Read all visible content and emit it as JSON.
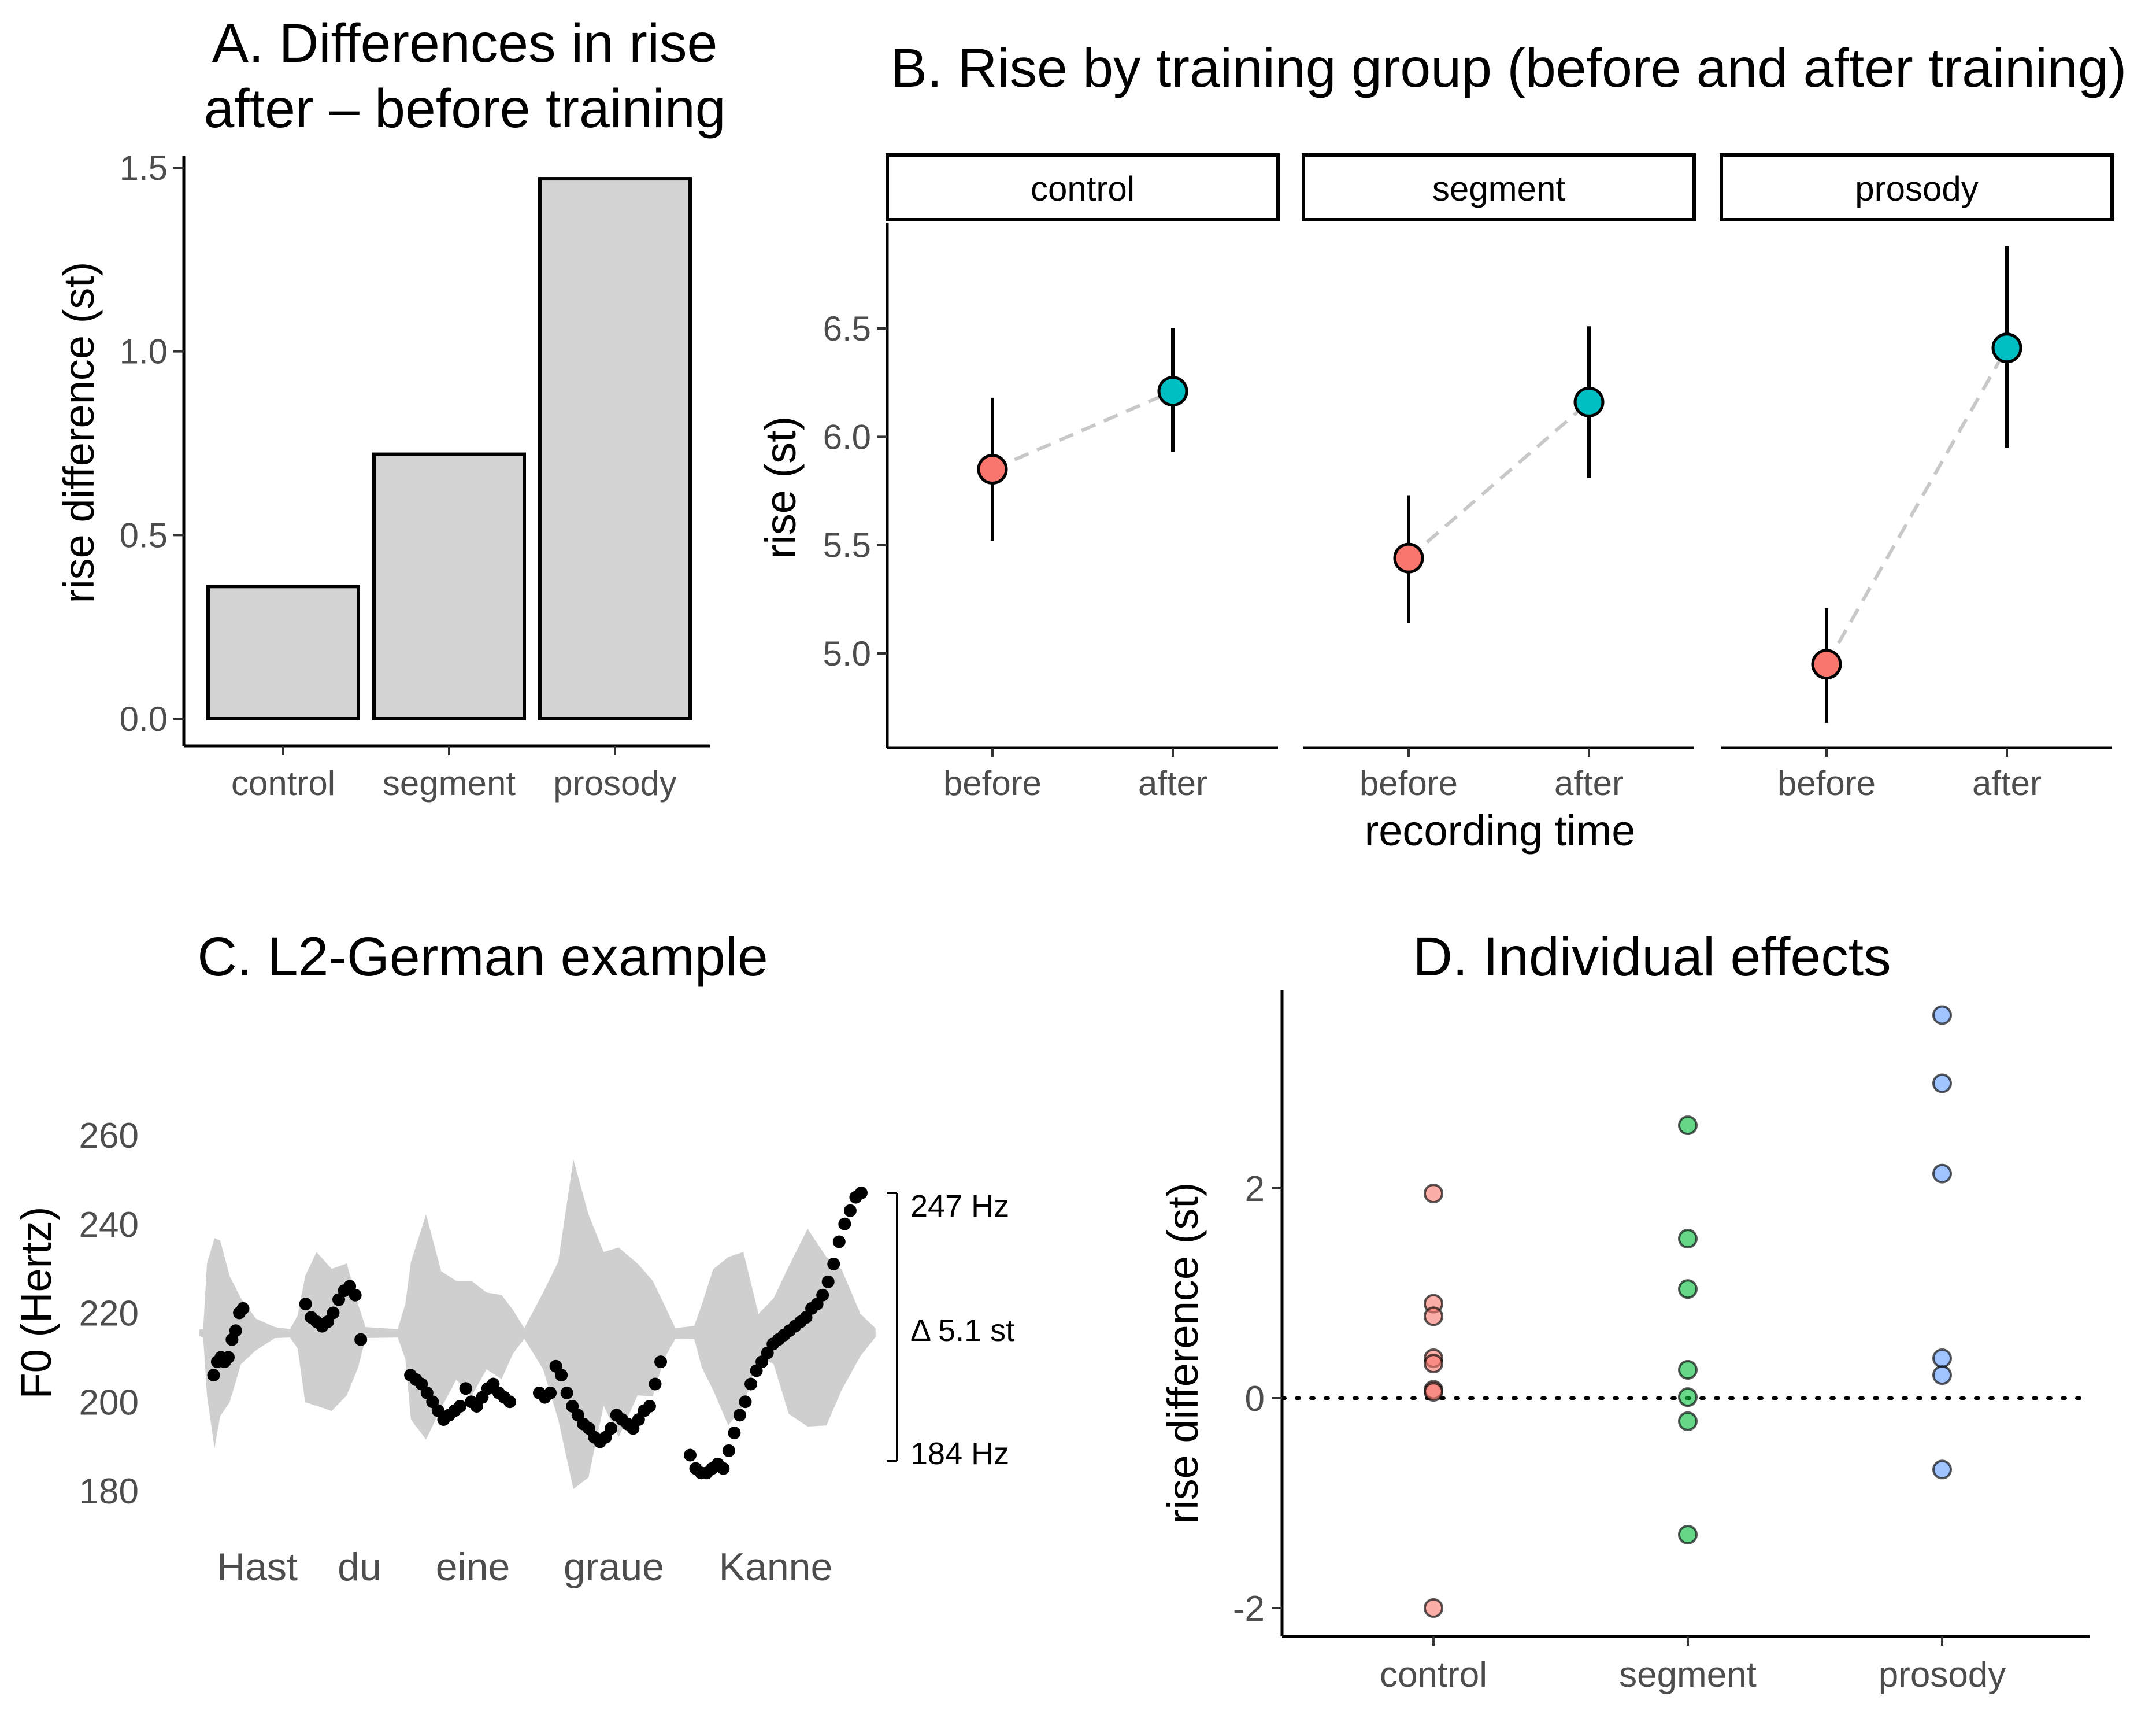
{
  "chart_data": [
    {
      "panel": "A",
      "type": "bar",
      "title_lines": [
        "A. Differences in rise",
        "after – before training"
      ],
      "xlabel": "",
      "ylabel": "rise difference (st)",
      "categories": [
        "control",
        "segment",
        "prosody"
      ],
      "values": [
        0.36,
        0.72,
        1.47
      ],
      "ylim": [
        0,
        1.55
      ],
      "yticks": [
        0,
        0.5,
        1,
        1.5
      ],
      "ytick_labels": [
        "0.0",
        "0.5",
        "1.0",
        "1.5"
      ],
      "bar_color": "#d3d3d3"
    },
    {
      "panel": "B",
      "type": "line",
      "title": "B. Rise by training group (before and after training)",
      "xlabel": "recording time",
      "ylabel": "rise (st)",
      "facets": [
        "control",
        "segment",
        "prosody"
      ],
      "x": [
        "before",
        "after"
      ],
      "ylim": [
        4.58,
        6.98
      ],
      "yticks": [
        5,
        5.5,
        6,
        6.5
      ],
      "ytick_labels": [
        "5.0",
        "5.5",
        "6.0",
        "6.5"
      ],
      "series": [
        {
          "facet": "control",
          "values": [
            5.85,
            6.21
          ],
          "lower": [
            5.52,
            5.93
          ],
          "upper": [
            6.18,
            6.5
          ]
        },
        {
          "facet": "segment",
          "values": [
            5.44,
            6.16
          ],
          "lower": [
            5.14,
            5.81
          ],
          "upper": [
            5.73,
            6.51
          ]
        },
        {
          "facet": "prosody",
          "values": [
            4.95,
            6.41
          ],
          "lower": [
            4.68,
            5.95
          ],
          "upper": [
            5.21,
            6.88
          ]
        }
      ],
      "colors": {
        "before": "#f8766d",
        "after": "#00bfc4"
      }
    },
    {
      "panel": "C",
      "type": "scatter",
      "title": "C. L2-German example",
      "ylabel": "F0 (Hertz)",
      "ylim": [
        175,
        270
      ],
      "yticks": [
        180,
        200,
        220,
        240,
        260
      ],
      "ytick_labels": [
        "180",
        "200",
        "220",
        "240",
        "260"
      ],
      "words": [
        "Hast",
        "du",
        "eine",
        "graue",
        "Kanne"
      ],
      "annotations": {
        "top": "247 Hz",
        "middle": "Δ 5.1 st",
        "bottom": "184 Hz"
      },
      "pitch_segments": [
        {
          "t": [
            0.03,
            0.05,
            0.07,
            0.09,
            0.11,
            0.13,
            0.15,
            0.17,
            0.19
          ],
          "f0": [
            206,
            209,
            210,
            209,
            210,
            214,
            216,
            220,
            221
          ]
        },
        {
          "t": [
            0.53,
            0.56,
            0.59,
            0.62,
            0.65,
            0.68,
            0.71,
            0.74,
            0.77,
            0.8,
            0.83
          ],
          "f0": [
            222,
            219,
            218,
            217,
            218,
            220,
            223,
            225,
            226,
            224,
            214
          ]
        },
        {
          "t": [
            1.1,
            1.13,
            1.16,
            1.19,
            1.22,
            1.25,
            1.28,
            1.31,
            1.34,
            1.37,
            1.4,
            1.43,
            1.46,
            1.49,
            1.52,
            1.55,
            1.58,
            1.61,
            1.64
          ],
          "f0": [
            206,
            205,
            204,
            202,
            200,
            198,
            196,
            197,
            198,
            199,
            203,
            200,
            199,
            201,
            203,
            204,
            202,
            201,
            200
          ]
        },
        {
          "t": [
            1.8,
            1.83,
            1.86,
            1.89,
            1.92,
            1.95,
            1.98,
            2.01,
            2.04,
            2.07,
            2.1,
            2.13,
            2.16,
            2.19,
            2.22,
            2.25,
            2.28,
            2.31,
            2.34,
            2.37,
            2.4,
            2.43,
            2.46
          ],
          "f0": [
            202,
            201,
            202,
            208,
            206,
            202,
            199,
            197,
            195,
            194,
            192,
            191,
            192,
            194,
            197,
            196,
            195,
            194,
            196,
            198,
            199,
            204,
            209
          ]
        },
        {
          "t": [
            2.62,
            2.65,
            2.68,
            2.71,
            2.74,
            2.77,
            2.8,
            2.83,
            2.86,
            2.89,
            2.92,
            2.95,
            2.98,
            3.01,
            3.04,
            3.07,
            3.1,
            3.13,
            3.16,
            3.19,
            3.22,
            3.25,
            3.28,
            3.31,
            3.34,
            3.37,
            3.4,
            3.43,
            3.46,
            3.49,
            3.52,
            3.55
          ],
          "f0": [
            188,
            185,
            184,
            184,
            185,
            186,
            185,
            189,
            193,
            197,
            200,
            204,
            207,
            209,
            211,
            213,
            214,
            215,
            216,
            217,
            218,
            219,
            221,
            222,
            224,
            227,
            231,
            236,
            240,
            243,
            246,
            247
          ]
        }
      ]
    },
    {
      "panel": "D",
      "type": "scatter",
      "title": "D. Individual effects",
      "xlabel": "",
      "ylabel": "rise difference (st)",
      "categories": [
        "control",
        "segment",
        "prosody"
      ],
      "ylim": [
        -2.25,
        3.9
      ],
      "yticks": [
        -2,
        0,
        2
      ],
      "ytick_labels": [
        "-2",
        "0",
        "2"
      ],
      "series": [
        {
          "name": "control",
          "values": [
            1.95,
            0.9,
            0.78,
            0.38,
            0.33,
            0.08,
            0.06,
            -2.0
          ],
          "color": "#f8766d"
        },
        {
          "name": "segment",
          "values": [
            2.6,
            1.52,
            1.04,
            0.27,
            0.01,
            -0.22,
            -1.3
          ],
          "color": "#00ba38"
        },
        {
          "name": "prosody",
          "values": [
            3.65,
            3.0,
            2.14,
            0.38,
            0.22,
            -0.68
          ],
          "color": "#619cff"
        }
      ],
      "reference_line": 0
    }
  ]
}
